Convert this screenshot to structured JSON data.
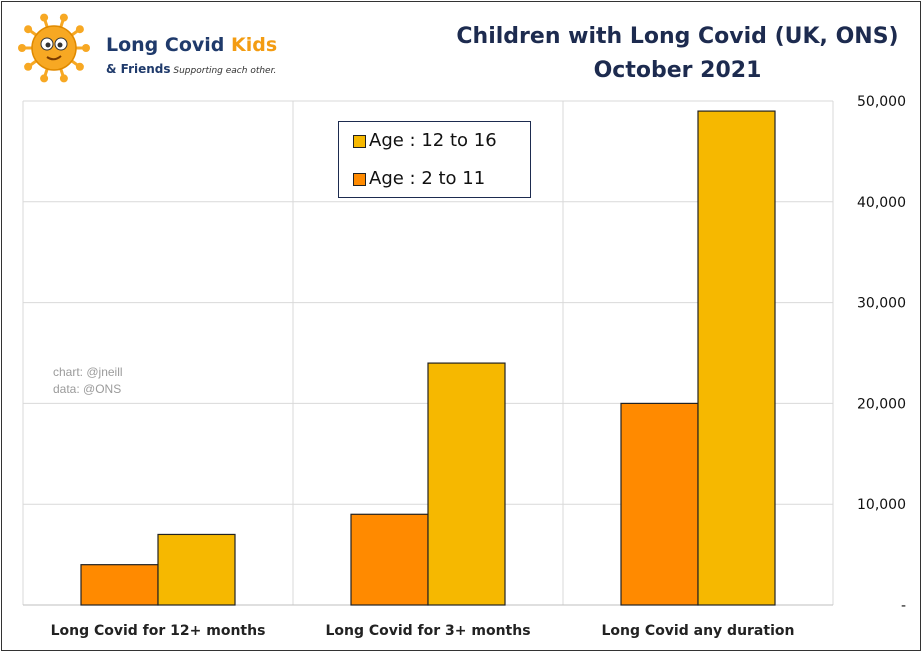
{
  "logo": {
    "name_main": "Long Covid ",
    "name_accent": "Kids",
    "sub_main": "& Friends",
    "sub_tag": " Supporting each other.",
    "colors": {
      "main": "#1f3a6b",
      "accent": "#f39c12",
      "virus": "#f7a823"
    }
  },
  "credits": {
    "chart": "chart: @jneill",
    "data": "data: @ONS"
  },
  "chart_data": {
    "type": "bar",
    "title": "Children with Long Covid (UK, ONS)",
    "subtitle": "October 2021",
    "categories": [
      "Long Covid for 12+ months",
      "Long Covid for 3+ months",
      "Long Covid any duration"
    ],
    "series": [
      {
        "name": "Age : 2 to 11",
        "values": [
          4000,
          9000,
          20000
        ],
        "color": "#ff8a00"
      },
      {
        "name": "Age : 12 to 16",
        "values": [
          7000,
          24000,
          49000
        ],
        "color": "#f6b800"
      }
    ],
    "legend_order": [
      1,
      0
    ],
    "legend_position": "top-center",
    "y_axis_side": "right",
    "ylim": [
      0,
      50000
    ],
    "yticks": [
      0,
      10000,
      20000,
      30000,
      40000,
      50000
    ],
    "ytick_labels": [
      "-",
      "10,000",
      "20,000",
      "30,000",
      "40,000",
      "50,000"
    ],
    "grid": true
  }
}
